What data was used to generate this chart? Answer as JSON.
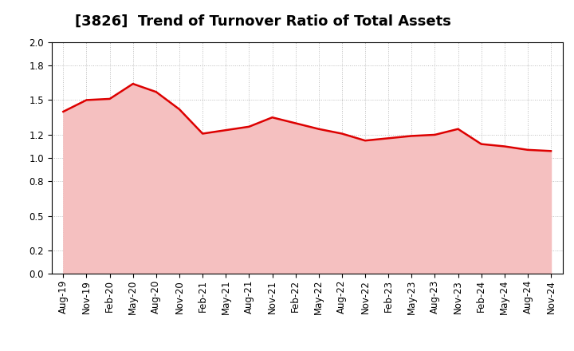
{
  "title": "[3826]  Trend of Turnover Ratio of Total Assets",
  "labels": [
    "Aug-19",
    "Nov-19",
    "Feb-20",
    "May-20",
    "Aug-20",
    "Nov-20",
    "Feb-21",
    "May-21",
    "Aug-21",
    "Nov-21",
    "Feb-22",
    "May-22",
    "Aug-22",
    "Nov-22",
    "Feb-23",
    "May-23",
    "Aug-23",
    "Nov-23",
    "Feb-24",
    "May-24",
    "Aug-24",
    "Nov-24"
  ],
  "values": [
    1.4,
    1.5,
    1.51,
    1.64,
    1.57,
    1.42,
    1.21,
    1.24,
    1.27,
    1.35,
    1.3,
    1.25,
    1.21,
    1.15,
    1.17,
    1.19,
    1.2,
    1.25,
    1.12,
    1.1,
    1.07,
    1.06
  ],
  "line_color": "#dd0000",
  "fill_color": "#f5c0c0",
  "ylim": [
    0.0,
    2.0
  ],
  "yticks": [
    0.0,
    0.2,
    0.5,
    0.8,
    1.0,
    1.2,
    1.5,
    1.8,
    2.0
  ],
  "grid_color": "#bbbbbb",
  "bg_color": "#ffffff",
  "title_fontsize": 13,
  "tick_fontsize": 8.5
}
